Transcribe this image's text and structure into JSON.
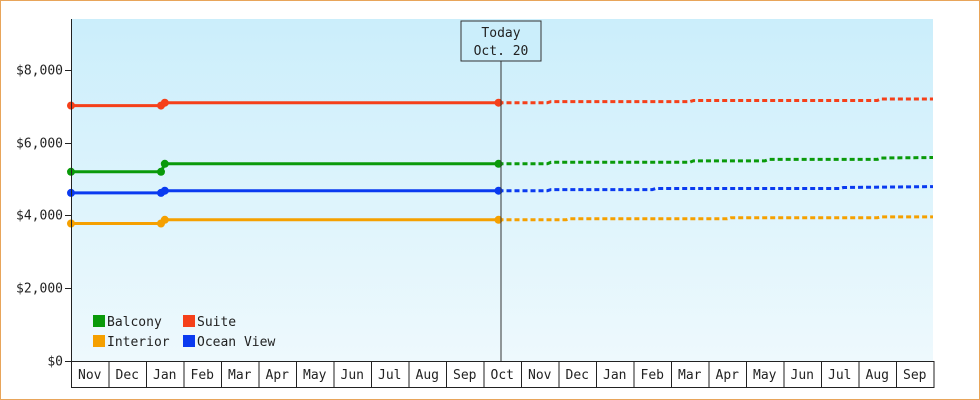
{
  "chart_data": {
    "type": "line",
    "title": "",
    "xlabel": "",
    "ylabel": "",
    "ylim": [
      0,
      9400
    ],
    "y_ticks": [
      0,
      2000,
      4000,
      6000,
      8000
    ],
    "y_tick_labels": [
      "$0",
      "$2,000",
      "$4,000",
      "$6,000",
      "$8,000"
    ],
    "x_month_labels": [
      "Nov",
      "Dec",
      "Jan",
      "Feb",
      "Mar",
      "Apr",
      "May",
      "Jun",
      "Jul",
      "Aug",
      "Sep",
      "Oct",
      "Nov",
      "Dec",
      "Jan",
      "Feb",
      "Mar",
      "Apr",
      "May",
      "Jun",
      "Jul",
      "Aug",
      "Sep"
    ],
    "today_marker": {
      "line1": "Today",
      "line2": "Oct. 20"
    },
    "legend_placement": "bottom-left",
    "grid": false,
    "colors": {
      "plot_bg_top": "#cbeefb",
      "plot_bg_bottom": "#eef9fd",
      "frame_border": "#e8a55a"
    },
    "series": [
      {
        "name": "Suite",
        "color": "#f5401a",
        "actual": [
          [
            0,
            7020
          ],
          [
            2.4,
            7020
          ],
          [
            2.5,
            7100
          ],
          [
            11.4,
            7100
          ]
        ],
        "forecast": [
          [
            11.4,
            7100
          ],
          [
            12.7,
            7100
          ],
          [
            12.8,
            7130
          ],
          [
            16.5,
            7130
          ],
          [
            16.6,
            7160
          ],
          [
            21.5,
            7160
          ],
          [
            21.6,
            7200
          ],
          [
            23.6,
            7200
          ]
        ]
      },
      {
        "name": "Balcony",
        "color": "#0a9a0a",
        "actual": [
          [
            0,
            5200
          ],
          [
            2.4,
            5200
          ],
          [
            2.5,
            5420
          ],
          [
            11.4,
            5420
          ]
        ],
        "forecast": [
          [
            11.4,
            5420
          ],
          [
            12.7,
            5420
          ],
          [
            12.8,
            5460
          ],
          [
            16.5,
            5460
          ],
          [
            16.6,
            5500
          ],
          [
            18.5,
            5500
          ],
          [
            18.6,
            5540
          ],
          [
            21.5,
            5540
          ],
          [
            21.6,
            5580
          ],
          [
            23.6,
            5600
          ]
        ]
      },
      {
        "name": "Ocean View",
        "color": "#0a3af0",
        "actual": [
          [
            0,
            4620
          ],
          [
            2.4,
            4620
          ],
          [
            2.5,
            4680
          ],
          [
            11.4,
            4680
          ]
        ],
        "forecast": [
          [
            11.4,
            4680
          ],
          [
            12.7,
            4680
          ],
          [
            12.8,
            4710
          ],
          [
            15.5,
            4710
          ],
          [
            15.6,
            4740
          ],
          [
            20.5,
            4740
          ],
          [
            20.6,
            4770
          ],
          [
            23.6,
            4800
          ]
        ]
      },
      {
        "name": "Interior",
        "color": "#f5a000",
        "actual": [
          [
            0,
            3780
          ],
          [
            2.4,
            3780
          ],
          [
            2.5,
            3880
          ],
          [
            11.4,
            3880
          ]
        ],
        "forecast": [
          [
            11.4,
            3880
          ],
          [
            13.2,
            3880
          ],
          [
            13.3,
            3910
          ],
          [
            17.5,
            3910
          ],
          [
            17.6,
            3940
          ],
          [
            21.5,
            3940
          ],
          [
            21.6,
            3960
          ],
          [
            23.6,
            3960
          ]
        ]
      }
    ],
    "legend_rows": [
      [
        "Balcony",
        "Suite"
      ],
      [
        "Interior",
        "Ocean View"
      ]
    ]
  }
}
